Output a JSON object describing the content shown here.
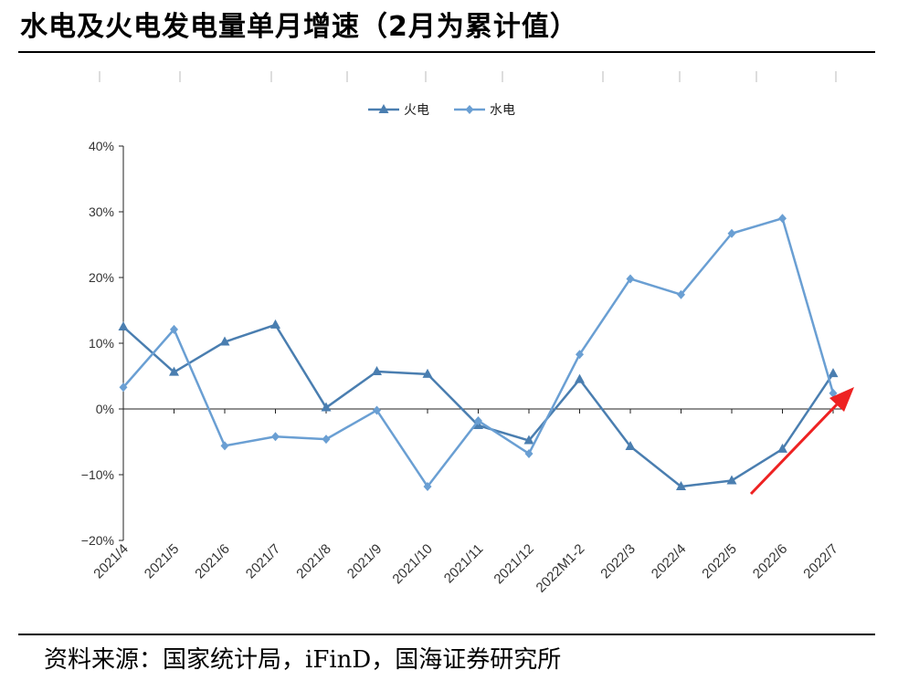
{
  "title": "水电及火电发电量单月增速（2月为累计值）",
  "source": "资料来源：国家统计局，iFinD，国海证券研究所",
  "colors": {
    "fire": "#4a7eb0",
    "hydro": "#6a9fd3",
    "arrow": "#ee2222",
    "axis": "#222222"
  },
  "chart_data": {
    "type": "line",
    "categories": [
      "2021/4",
      "2021/5",
      "2021/6",
      "2021/7",
      "2021/8",
      "2021/9",
      "2021/10",
      "2021/11",
      "2021/12",
      "2022M1-2",
      "2022/3",
      "2022/4",
      "2022/5",
      "2022/6",
      "2022/7"
    ],
    "series": [
      {
        "name": "火电",
        "marker": "triangle",
        "values": [
          12.5,
          5.6,
          10.2,
          12.8,
          0.2,
          5.7,
          5.3,
          -2.5,
          -4.8,
          4.5,
          -5.7,
          -11.8,
          -10.9,
          -6.1,
          5.4
        ]
      },
      {
        "name": "水电",
        "marker": "diamond",
        "values": [
          3.3,
          12.1,
          -5.6,
          -4.2,
          -4.6,
          -0.2,
          -11.8,
          -1.8,
          -6.8,
          8.3,
          19.8,
          17.4,
          26.7,
          29.0,
          2.4
        ]
      }
    ],
    "ylim": [
      -20,
      40
    ],
    "yticks": [
      -20,
      -10,
      0,
      10,
      20,
      30,
      40
    ],
    "ytick_labels": [
      "−20%",
      "−10%",
      "0%",
      "10%",
      "20%",
      "30%",
      "40%"
    ],
    "legend_position": "top-center",
    "grid": false,
    "annotation": "red arrow pointing up-right toward latest 2022/7 values"
  }
}
